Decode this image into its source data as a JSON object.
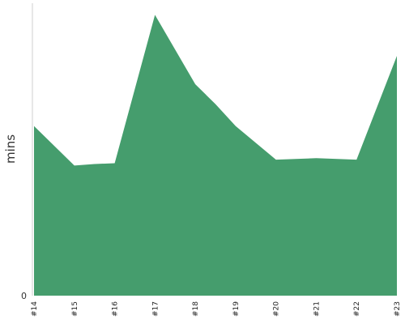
{
  "chart_data": {
    "type": "area",
    "x": [
      "#14",
      "#15",
      "#15.5",
      "#16",
      "#17",
      "#18",
      "#18.5",
      "#19",
      "#20",
      "#21",
      "#22",
      "#23"
    ],
    "categories": [
      "#14",
      "#15",
      "#16",
      "#17",
      "#18",
      "#19",
      "#20",
      "#21",
      "#22",
      "#23"
    ],
    "values": [
      58,
      44.5,
      45,
      45.3,
      96,
      72.3,
      65.5,
      58,
      46.5,
      47,
      46.5,
      82
    ],
    "xlabel": "",
    "ylabel": "mins",
    "ylim": [
      0,
      100
    ],
    "y_ticks": [
      "0"
    ],
    "grid": false,
    "colors": {
      "fill": "#459d6d",
      "axis": "#cfcfcf"
    }
  }
}
